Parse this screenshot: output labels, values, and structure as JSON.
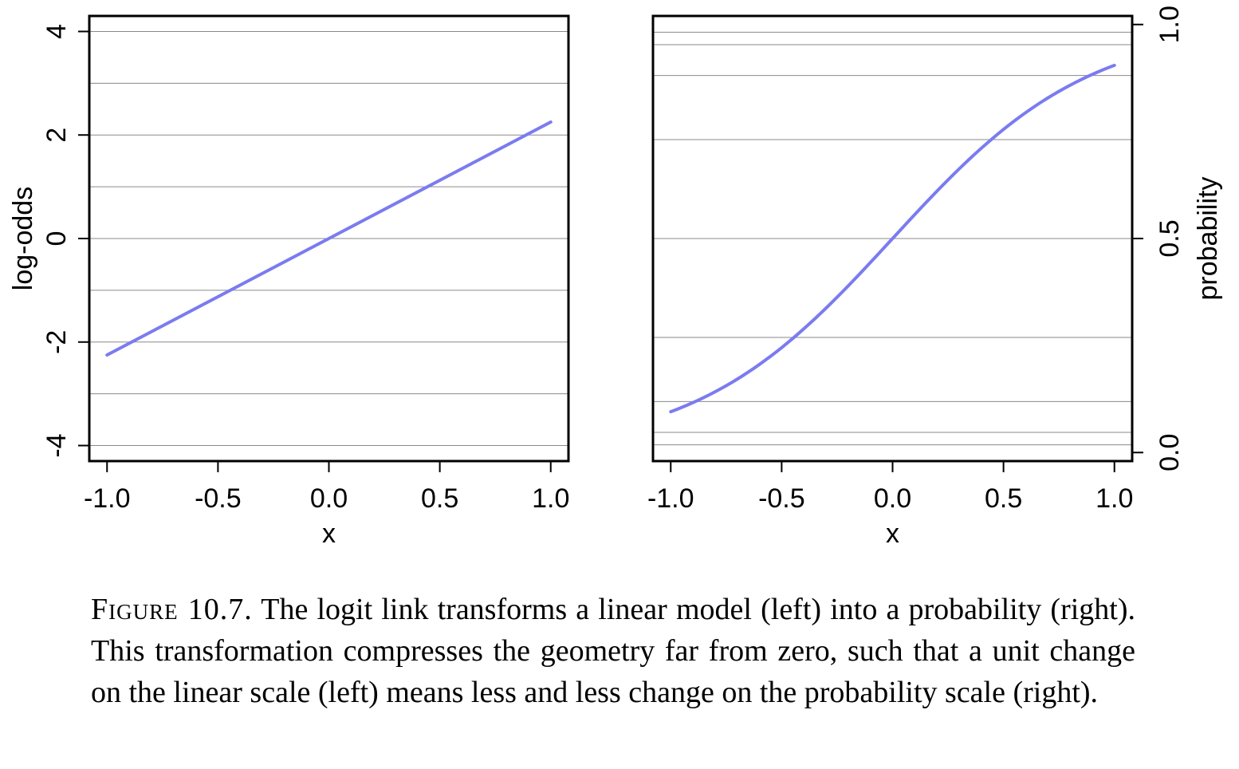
{
  "chart_data": [
    {
      "type": "line",
      "panel": "left",
      "xlabel": "x",
      "ylabel": "log-odds",
      "xlim": [
        -1.08,
        1.08
      ],
      "ylim": [
        -4.3,
        4.3
      ],
      "x_ticks": [
        -1.0,
        -0.5,
        0.0,
        0.5,
        1.0
      ],
      "x_tick_labels": [
        "-1.0",
        "-0.5",
        "0.0",
        "0.5",
        "1.0"
      ],
      "y_ticks": [
        -4,
        -2,
        0,
        2,
        4
      ],
      "y_tick_labels": [
        "-4",
        "-2",
        "0",
        "2",
        "4"
      ],
      "y_axis_side": "left",
      "grid_lines_y": [
        -4,
        -3,
        -2,
        -1,
        0,
        1,
        2,
        3,
        4
      ],
      "series_color": "#7b7bf0",
      "x": [
        -1.0,
        -0.5,
        0.0,
        0.5,
        1.0
      ],
      "y": [
        -2.25,
        -1.125,
        0.0,
        1.125,
        2.25
      ]
    },
    {
      "type": "line",
      "panel": "right",
      "xlabel": "x",
      "ylabel": "probability",
      "xlim": [
        -1.08,
        1.08
      ],
      "ylim": [
        -0.02,
        1.02
      ],
      "x_ticks": [
        -1.0,
        -0.5,
        0.0,
        0.5,
        1.0
      ],
      "x_tick_labels": [
        "-1.0",
        "-0.5",
        "0.0",
        "0.5",
        "1.0"
      ],
      "y_ticks": [
        0.0,
        0.5,
        1.0
      ],
      "y_tick_labels": [
        "0.0",
        "0.5",
        "1.0"
      ],
      "y_axis_side": "right",
      "grid_lines_y": [
        0.018,
        0.047,
        0.119,
        0.269,
        0.5,
        0.731,
        0.881,
        0.953,
        0.982
      ],
      "series_color": "#7b7bf0",
      "x": [
        -1.0,
        -0.75,
        -0.5,
        -0.25,
        0.0,
        0.25,
        0.5,
        0.75,
        1.0
      ],
      "y": [
        0.095,
        0.156,
        0.245,
        0.363,
        0.5,
        0.637,
        0.755,
        0.844,
        0.905
      ]
    }
  ],
  "caption": {
    "label": "Figure 10.7.",
    "text": "The logit link transforms a linear model (left) into a probability (right). This transformation compresses the geometry far from zero, such that a unit change on the linear scale (left) means less and less change on the probability scale (right)."
  }
}
